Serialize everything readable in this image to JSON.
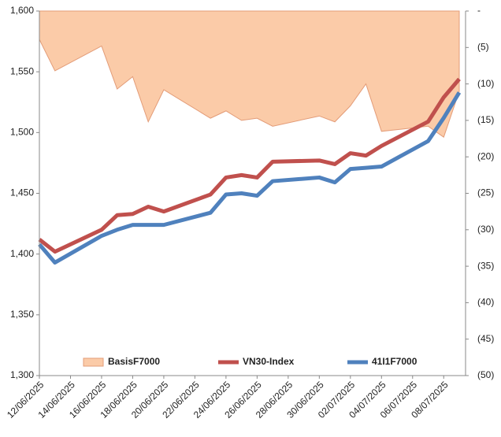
{
  "chart_data": {
    "type": "line",
    "x": [
      "12/06/2025",
      "13/06/2025",
      "16/06/2025",
      "17/06/2025",
      "18/06/2025",
      "19/06/2025",
      "20/06/2025",
      "23/06/2025",
      "24/06/2025",
      "25/06/2025",
      "26/06/2025",
      "27/06/2025",
      "30/06/2025",
      "01/07/2025",
      "02/07/2025",
      "03/07/2025",
      "04/07/2025",
      "07/07/2025",
      "08/07/2025",
      "09/07/2025"
    ],
    "xlim": [
      "12/06/2025",
      "09/07/2025"
    ],
    "xticks": [
      "12/06/2025",
      "14/06/2025",
      "16/06/2025",
      "18/06/2025",
      "20/06/2025",
      "22/06/2025",
      "24/06/2025",
      "26/06/2025",
      "28/06/2025",
      "30/06/2025",
      "02/07/2025",
      "04/07/2025",
      "06/07/2025",
      "08/07/2025"
    ],
    "series": [
      {
        "name": "BasisF7000",
        "type": "area",
        "axis": "y2",
        "color": "#fbcba8",
        "edge_color": "#e39c78",
        "values": [
          -3.9,
          -8.2,
          -4.8,
          -10.7,
          -9.0,
          -15.2,
          -10.8,
          -14.7,
          -13.7,
          -15.0,
          -14.7,
          -15.8,
          -14.4,
          -15.2,
          -13.0,
          -10.0,
          -16.5,
          -15.8,
          -17.3,
          -11
        ]
      },
      {
        "name": "VN30-Index",
        "color": "#c0504d",
        "values": [
          1412,
          1402,
          1420,
          1432,
          1433,
          1439,
          1435,
          1449,
          1463,
          1465,
          1463,
          1476,
          1477,
          1474,
          1483,
          1481,
          1489,
          1509,
          1529,
          1544
        ]
      },
      {
        "name": "41I1F7000",
        "color": "#4f81bd",
        "values": [
          1408,
          1393,
          1415,
          1420,
          1424,
          1424,
          1424,
          1434,
          1449,
          1450,
          1448,
          1460,
          1463,
          1459,
          1470,
          1471,
          1472,
          1493,
          1512,
          1533
        ]
      }
    ],
    "ylim": [
      1300,
      1600
    ],
    "yticks": [
      {
        "value": 1300,
        "label": "1,300"
      },
      {
        "value": 1350,
        "label": "1,350"
      },
      {
        "value": 1400,
        "label": "1,400"
      },
      {
        "value": 1450,
        "label": "1,450"
      },
      {
        "value": 1500,
        "label": "1,500"
      },
      {
        "value": 1550,
        "label": "1,550"
      },
      {
        "value": 1600,
        "label": "1,600"
      }
    ],
    "y2lim": [
      -50,
      0
    ],
    "y2ticks": [
      {
        "value": 0,
        "label": "-"
      },
      {
        "value": -5,
        "label": "(5)"
      },
      {
        "value": -10,
        "label": "(10)"
      },
      {
        "value": -15,
        "label": "(15)"
      },
      {
        "value": -20,
        "label": "(20)"
      },
      {
        "value": -25,
        "label": "(25)"
      },
      {
        "value": -30,
        "label": "(30)"
      },
      {
        "value": -35,
        "label": "(35)"
      },
      {
        "value": -40,
        "label": "(40)"
      },
      {
        "value": -45,
        "label": "(45)"
      },
      {
        "value": -50,
        "label": "(50)"
      }
    ],
    "legend": "bottom",
    "grid": false
  }
}
